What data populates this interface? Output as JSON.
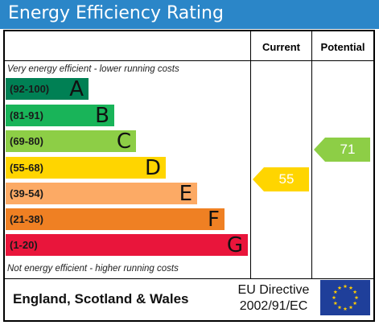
{
  "title": "Energy Efficiency Rating",
  "columns": {
    "current": "Current",
    "potential": "Potential"
  },
  "notes": {
    "top": "Very energy efficient - lower running costs",
    "bottom": "Not energy efficient - higher running costs"
  },
  "bands": [
    {
      "range": "(92-100)",
      "letter": "A",
      "color": "#008054"
    },
    {
      "range": "(81-91)",
      "letter": "B",
      "color": "#19b459"
    },
    {
      "range": "(69-80)",
      "letter": "C",
      "color": "#8dce46"
    },
    {
      "range": "(55-68)",
      "letter": "D",
      "color": "#ffd500"
    },
    {
      "range": "(39-54)",
      "letter": "E",
      "color": "#fcaa65"
    },
    {
      "range": "(21-38)",
      "letter": "F",
      "color": "#ef8023"
    },
    {
      "range": "(1-20)",
      "letter": "G",
      "color": "#e9153b"
    }
  ],
  "current": {
    "value": "55",
    "band": "D",
    "color": "#ffd500"
  },
  "potential": {
    "value": "71",
    "band": "C",
    "color": "#8dce46"
  },
  "footer": {
    "region": "England, Scotland & Wales",
    "directive_line1": "EU Directive",
    "directive_line2": "2002/91/EC"
  },
  "flag": {
    "name": "eu-flag-icon",
    "color": "#1f3f9a",
    "star_color": "#ffcc00"
  }
}
